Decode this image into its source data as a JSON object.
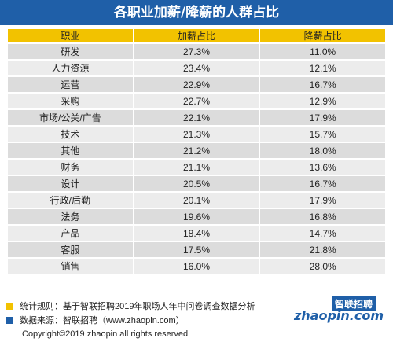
{
  "title": "各职业加薪/降薪的人群占比",
  "colors": {
    "title_bg": "#1f5fa8",
    "header_bg": "#f2c200",
    "row_bg": "#dcdcdc",
    "row_alt_bg": "#ececec"
  },
  "chart_data": {
    "type": "table",
    "title": "各职业加薪/降薪的人群占比",
    "columns": [
      "职业",
      "加薪占比",
      "降薪占比"
    ],
    "rows": [
      [
        "研发",
        "27.3%",
        "11.0%"
      ],
      [
        "人力资源",
        "23.4%",
        "12.1%"
      ],
      [
        "运营",
        "22.9%",
        "16.7%"
      ],
      [
        "采购",
        "22.7%",
        "12.9%"
      ],
      [
        "市场/公关/广告",
        "22.1%",
        "17.9%"
      ],
      [
        "技术",
        "21.3%",
        "15.7%"
      ],
      [
        "其他",
        "21.2%",
        "18.0%"
      ],
      [
        "财务",
        "21.1%",
        "13.6%"
      ],
      [
        "设计",
        "20.5%",
        "16.7%"
      ],
      [
        "行政/后勤",
        "20.1%",
        "17.9%"
      ],
      [
        "法务",
        "19.6%",
        "16.8%"
      ],
      [
        "产品",
        "18.4%",
        "14.7%"
      ],
      [
        "客服",
        "17.5%",
        "21.8%"
      ],
      [
        "销售",
        "16.0%",
        "28.0%"
      ]
    ]
  },
  "footer": {
    "note1": "统计规则：基于智联招聘2019年职场人年中问卷调查数据分析",
    "note1_color": "#f2c200",
    "note2": "数据来源：智联招聘（www.zhaopin.com）",
    "note2_color": "#1f5fa8",
    "copyright": "Copyright©2019 zhaopin all rights reserved",
    "logo_cn": "智联招聘",
    "logo_en": "zhaopin.com"
  }
}
